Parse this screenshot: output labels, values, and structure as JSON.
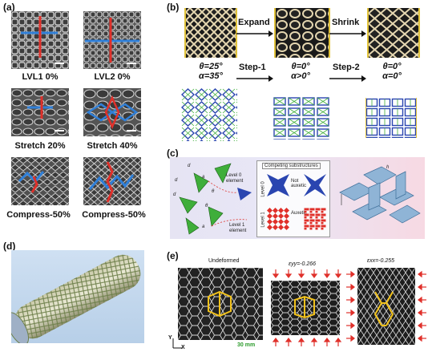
{
  "panel_a": {
    "label": "(a)",
    "captions": [
      "LVL1 0%",
      "LVL2 0%",
      "Stretch 20%",
      "Stretch 40%",
      "Compress-50%",
      "Compress-50%"
    ]
  },
  "panel_b": {
    "label": "(b)",
    "expand": "Expand",
    "shrink": "Shrink",
    "step1": "Step-1",
    "step2": "Step-2",
    "states": [
      {
        "theta": "θ=25°",
        "alpha": "α=35°"
      },
      {
        "theta": "θ=0°",
        "alpha": "α>0°"
      },
      {
        "theta": "θ=0°",
        "alpha": "α=0°"
      }
    ]
  },
  "panel_c": {
    "label": "(c)",
    "level0": "Level 0 element",
    "level1": "Level 1 element",
    "competing": "Competing substructures",
    "not_auxetic": "Not auxetic",
    "auxetic": "Auxetic",
    "level0_side": "Level 0",
    "level1_side": "Level 1",
    "symbols": [
      "d",
      "d",
      "d",
      "θ",
      "θ",
      "a",
      "a",
      "h"
    ]
  },
  "panel_d": {
    "label": "(d)"
  },
  "panel_e": {
    "label": "(e)",
    "titles": [
      "Undeformed",
      "εyy=-0.266",
      "εxx=-0.255"
    ],
    "scale": "30 mm",
    "axis_y": "Y",
    "axis_x": "X"
  },
  "colors": {
    "red_marker": "#e0302a",
    "blue_marker": "#2f7fd8",
    "green_element": "#3fae3a",
    "yellow_highlight": "#f2c21b",
    "lattice_blue": "#2a45b0"
  }
}
